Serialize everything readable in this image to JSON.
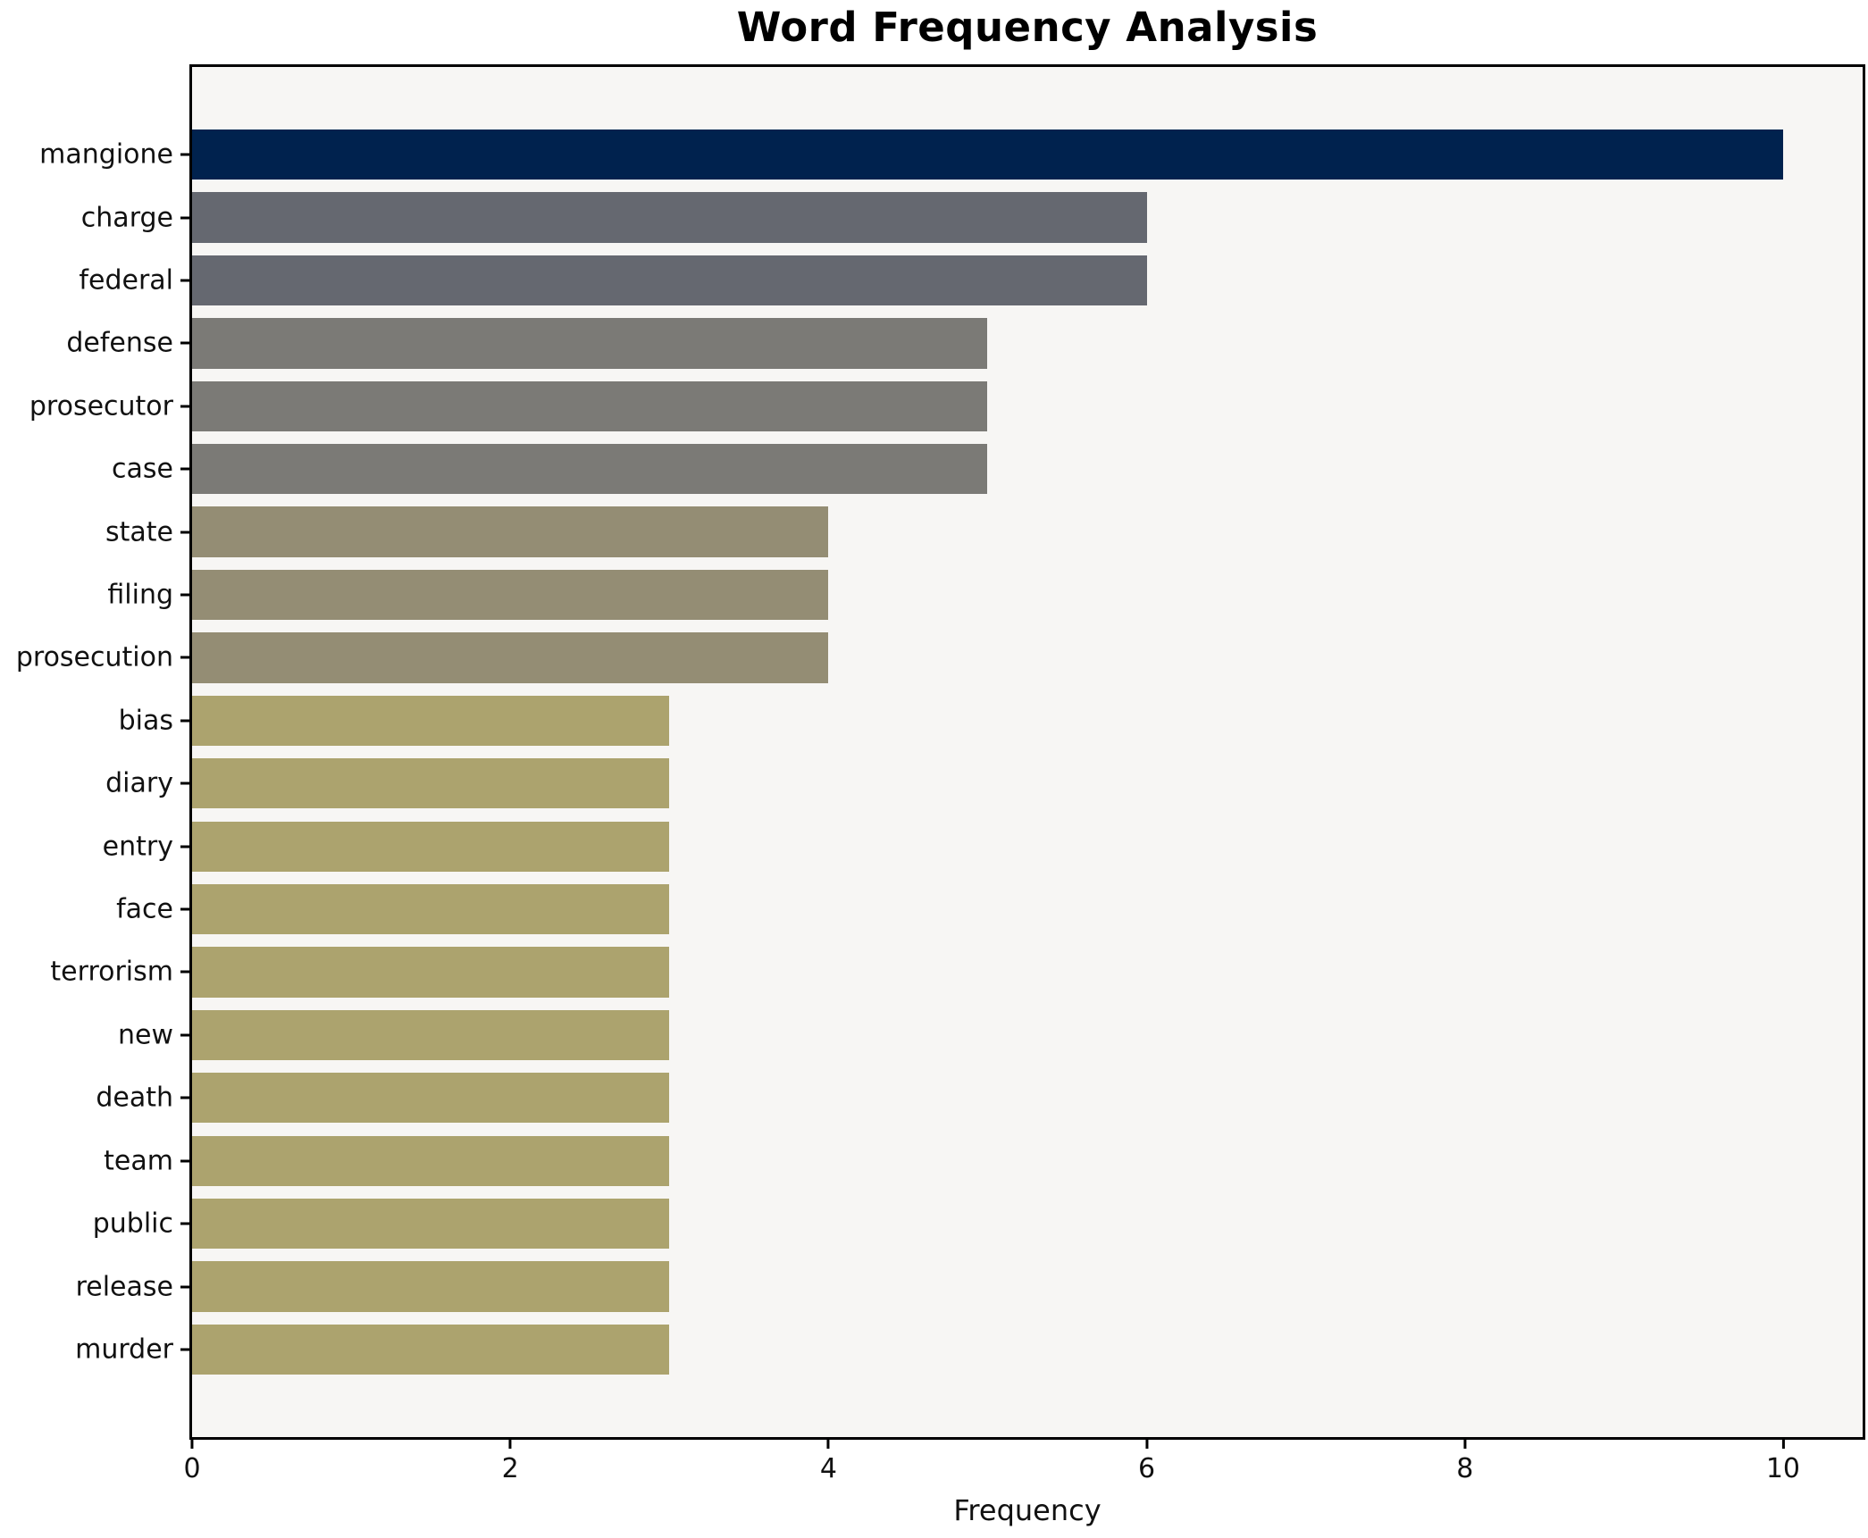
{
  "title": "Word Frequency Analysis",
  "xlabel": "Frequency",
  "chart_data": {
    "type": "bar",
    "orientation": "horizontal",
    "title": "Word Frequency Analysis",
    "xlabel": "Frequency",
    "ylabel": "",
    "categories": [
      "mangione",
      "charge",
      "federal",
      "defense",
      "prosecutor",
      "case",
      "state",
      "filing",
      "prosecution",
      "bias",
      "diary",
      "entry",
      "face",
      "terrorism",
      "new",
      "death",
      "team",
      "public",
      "release",
      "murder"
    ],
    "values": [
      10,
      6,
      6,
      5,
      5,
      5,
      4,
      4,
      4,
      3,
      3,
      3,
      3,
      3,
      3,
      3,
      3,
      3,
      3,
      3
    ],
    "bar_colors": [
      "#00224e",
      "#656870",
      "#656870",
      "#7b7a76",
      "#7b7a76",
      "#7b7a76",
      "#948d74",
      "#948d74",
      "#948d74",
      "#aca36e",
      "#aca36e",
      "#aca36e",
      "#aca36e",
      "#aca36e",
      "#aca36e",
      "#aca36e",
      "#aca36e",
      "#aca36e",
      "#aca36e",
      "#aca36e"
    ],
    "xticks": [
      0,
      2,
      4,
      6,
      8,
      10
    ],
    "xlim": [
      0,
      10.5
    ],
    "grid": false,
    "legend": false,
    "plot_background": "#f7f6f4",
    "figure_background": "#ffffff",
    "spine_color": "#000000"
  }
}
